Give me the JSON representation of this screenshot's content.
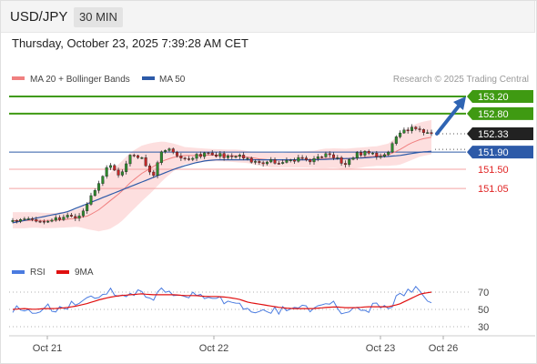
{
  "header": {
    "symbol": "USD/JPY",
    "timeframe": "30 MIN",
    "datetime": "Thursday, October 23, 2025 7:39:28 AM CET"
  },
  "legend": {
    "bollinger": "MA 20 + Bollinger Bands",
    "ma50": "MA 50",
    "credit": "Research © 2025 Trading Central"
  },
  "colors": {
    "target": "#3f9a12",
    "support": "#e02424",
    "current": "#222222",
    "ma50": "#2d5aa8",
    "bb_fill": "#fdd9d9",
    "ma20": "#f08080",
    "arrow": "#2f64b3",
    "rsi": "#4a7be0",
    "ma9": "#e01010"
  },
  "levels": [
    {
      "value": 153.2,
      "label": "153.20",
      "kind": "target"
    },
    {
      "value": 152.8,
      "label": "152.80",
      "kind": "target"
    },
    {
      "value": 152.33,
      "label": "152.33",
      "kind": "current"
    },
    {
      "value": 151.9,
      "label": "151.90",
      "kind": "pivot"
    },
    {
      "value": 151.5,
      "label": "151.50",
      "kind": "support"
    },
    {
      "value": 151.05,
      "label": "151.05",
      "kind": "support"
    }
  ],
  "rsi_panel": {
    "legend_rsi": "RSI",
    "legend_ma": "9MA",
    "ticks": [
      70,
      50,
      30
    ]
  },
  "x_axis": {
    "labels": [
      "Oct 21",
      "Oct 22",
      "Oct 23",
      "Oct 26"
    ]
  },
  "chart_data": {
    "type": "candlestick",
    "timeframe": "30 MIN",
    "y_range": [
      150.6,
      153.5
    ],
    "anchor_close": [
      150.3,
      150.3,
      150.32,
      150.28,
      150.35,
      150.4,
      150.38,
      150.7,
      151.2,
      151.6,
      151.3,
      151.85,
      151.75,
      151.3,
      152.0,
      151.9,
      151.7,
      151.82,
      151.85,
      151.84,
      151.8,
      151.85,
      151.7,
      151.62,
      151.7,
      151.66,
      151.72,
      151.75,
      151.7,
      151.86,
      151.78,
      151.6,
      151.86,
      151.88,
      151.82,
      151.9,
      152.35,
      152.45,
      152.4,
      152.33
    ],
    "ma20_anchor": [
      150.3,
      150.3,
      150.31,
      150.3,
      150.31,
      150.33,
      150.36,
      150.41,
      150.55,
      150.75,
      150.95,
      151.2,
      151.4,
      151.55,
      151.7,
      151.78,
      151.82,
      151.82,
      151.83,
      151.83,
      151.82,
      151.81,
      151.78,
      151.74,
      151.72,
      151.71,
      151.72,
      151.73,
      151.73,
      151.75,
      151.76,
      151.74,
      151.76,
      151.79,
      151.81,
      151.84,
      151.95,
      152.1,
      152.2,
      152.25
    ],
    "bb_upper_anchor": [
      150.5,
      150.5,
      150.5,
      150.48,
      150.48,
      150.52,
      150.56,
      150.72,
      151.05,
      151.4,
      151.65,
      151.9,
      152.05,
      152.12,
      152.15,
      152.1,
      152.02,
      152.0,
      151.98,
      151.97,
      151.96,
      151.96,
      151.92,
      151.9,
      151.9,
      151.88,
      151.9,
      151.92,
      151.93,
      151.98,
      151.99,
      151.98,
      152.0,
      152.02,
      152.04,
      152.1,
      152.3,
      152.5,
      152.6,
      152.65
    ],
    "bb_lower_anchor": [
      150.12,
      150.12,
      150.14,
      150.12,
      150.13,
      150.14,
      150.16,
      150.1,
      150.05,
      150.1,
      150.25,
      150.5,
      150.75,
      150.98,
      151.25,
      151.46,
      151.62,
      151.64,
      151.68,
      151.69,
      151.68,
      151.66,
      151.64,
      151.58,
      151.54,
      151.54,
      151.54,
      151.54,
      151.53,
      151.52,
      151.53,
      151.5,
      151.52,
      151.56,
      151.58,
      151.58,
      151.6,
      151.7,
      151.8,
      151.85
    ],
    "ma50_anchor": [
      150.25,
      150.3,
      150.35,
      150.4,
      150.45,
      150.5,
      150.6,
      150.7,
      150.8,
      150.9,
      151.0,
      151.1,
      151.2,
      151.3,
      151.4,
      151.5,
      151.58,
      151.65,
      151.7,
      151.72,
      151.72,
      151.72,
      151.72,
      151.72,
      151.72,
      151.72,
      151.72,
      151.72,
      151.72,
      151.73,
      151.74,
      151.75,
      151.76,
      151.77,
      151.79,
      151.8,
      151.82,
      151.86,
      151.9,
      151.92
    ],
    "rsi_anchor": [
      50,
      52,
      48,
      55,
      50,
      53,
      58,
      62,
      68,
      72,
      65,
      70,
      68,
      60,
      72,
      68,
      62,
      66,
      65,
      64,
      60,
      58,
      45,
      52,
      50,
      48,
      55,
      52,
      50,
      55,
      58,
      42,
      55,
      50,
      55,
      52,
      66,
      74,
      72,
      60
    ],
    "rsi_ma9_anchor": [
      50,
      51,
      50,
      51,
      51,
      52,
      54,
      57,
      61,
      64,
      66,
      67,
      68,
      67,
      67,
      67,
      66,
      66,
      65,
      65,
      64,
      62,
      58,
      56,
      54,
      52,
      51,
      51,
      51,
      52,
      53,
      52,
      52,
      53,
      53,
      53,
      56,
      62,
      68,
      70
    ],
    "forecast_arrow": {
      "from": 152.33,
      "to": 153.2
    }
  }
}
